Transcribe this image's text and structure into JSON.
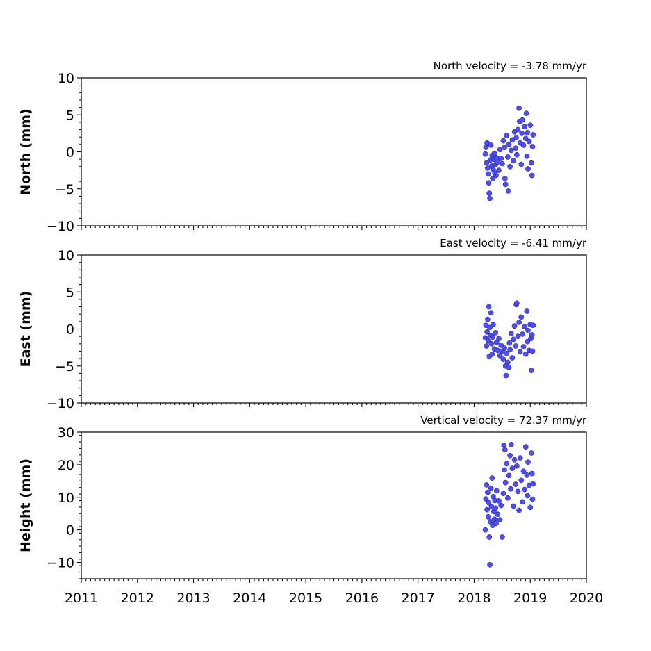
{
  "chart_data": [
    {
      "type": "scatter",
      "component": "north",
      "annotation": "North velocity = -3.78 mm/yr",
      "ylabel": "North (mm)",
      "ylim": [
        -10,
        10
      ],
      "yticks": [
        -10,
        -5,
        0,
        5,
        10
      ],
      "ytick_labels": [
        "−10",
        "−5",
        "0",
        "5",
        "10"
      ],
      "xlim": [
        2011,
        2020
      ],
      "show_xtick_labels": false,
      "color": "#4d4dff",
      "points": [
        [
          2018.2,
          -0.3
        ],
        [
          2018.21,
          0.6
        ],
        [
          2018.22,
          -1.5
        ],
        [
          2018.23,
          1.2
        ],
        [
          2018.24,
          -2.2
        ],
        [
          2018.25,
          -3.0
        ],
        [
          2018.26,
          -4.2
        ],
        [
          2018.27,
          -5.6
        ],
        [
          2018.28,
          -6.3
        ],
        [
          2018.29,
          -1.1
        ],
        [
          2018.3,
          0.9
        ],
        [
          2018.31,
          -1.9
        ],
        [
          2018.32,
          -0.5
        ],
        [
          2018.33,
          -3.6
        ],
        [
          2018.34,
          -2.4
        ],
        [
          2018.35,
          -1.0
        ],
        [
          2018.36,
          -0.2
        ],
        [
          2018.37,
          -2.9
        ],
        [
          2018.38,
          -1.7
        ],
        [
          2018.39,
          -3.2
        ],
        [
          2018.4,
          -0.8
        ],
        [
          2018.42,
          -1.4
        ],
        [
          2018.44,
          -2.5
        ],
        [
          2018.46,
          0.3
        ],
        [
          2018.48,
          -0.9
        ],
        [
          2018.5,
          -1.6
        ],
        [
          2018.52,
          1.5
        ],
        [
          2018.54,
          0.6
        ],
        [
          2018.55,
          -3.6
        ],
        [
          2018.56,
          -4.4
        ],
        [
          2018.58,
          2.2
        ],
        [
          2018.6,
          -0.7
        ],
        [
          2018.61,
          -5.3
        ],
        [
          2018.62,
          1.0
        ],
        [
          2018.64,
          -2.0
        ],
        [
          2018.66,
          0.2
        ],
        [
          2018.68,
          1.6
        ],
        [
          2018.7,
          -1.2
        ],
        [
          2018.72,
          2.7
        ],
        [
          2018.74,
          0.5
        ],
        [
          2018.75,
          1.9
        ],
        [
          2018.76,
          -0.4
        ],
        [
          2018.78,
          3.0
        ],
        [
          2018.8,
          5.9
        ],
        [
          2018.81,
          4.1
        ],
        [
          2018.82,
          1.2
        ],
        [
          2018.84,
          -1.7
        ],
        [
          2018.85,
          2.5
        ],
        [
          2018.86,
          4.3
        ],
        [
          2018.88,
          0.9
        ],
        [
          2018.9,
          3.4
        ],
        [
          2018.92,
          1.8
        ],
        [
          2018.93,
          5.2
        ],
        [
          2018.94,
          -0.6
        ],
        [
          2018.95,
          2.6
        ],
        [
          2018.96,
          -2.3
        ],
        [
          2018.98,
          1.4
        ],
        [
          2019.0,
          3.6
        ],
        [
          2019.02,
          -1.5
        ],
        [
          2019.03,
          -3.2
        ],
        [
          2019.04,
          0.7
        ],
        [
          2019.05,
          2.3
        ]
      ]
    },
    {
      "type": "scatter",
      "component": "east",
      "annotation": "East velocity = -6.41 mm/yr",
      "ylabel": "East (mm)",
      "ylim": [
        -10,
        10
      ],
      "yticks": [
        -10,
        -5,
        0,
        5,
        10
      ],
      "ytick_labels": [
        "−10",
        "−5",
        "0",
        "5",
        "10"
      ],
      "xlim": [
        2011,
        2020
      ],
      "show_xtick_labels": false,
      "color": "#4d4dff",
      "points": [
        [
          2018.2,
          -1.2
        ],
        [
          2018.21,
          0.5
        ],
        [
          2018.22,
          -2.3
        ],
        [
          2018.23,
          -0.4
        ],
        [
          2018.24,
          1.3
        ],
        [
          2018.25,
          -1.6
        ],
        [
          2018.26,
          3.0
        ],
        [
          2018.27,
          -3.7
        ],
        [
          2018.28,
          0.2
        ],
        [
          2018.29,
          -0.9
        ],
        [
          2018.3,
          2.2
        ],
        [
          2018.31,
          -2.0
        ],
        [
          2018.32,
          -3.4
        ],
        [
          2018.33,
          -1.1
        ],
        [
          2018.34,
          0.6
        ],
        [
          2018.36,
          -2.7
        ],
        [
          2018.38,
          -0.5
        ],
        [
          2018.4,
          -1.8
        ],
        [
          2018.42,
          -2.9
        ],
        [
          2018.44,
          -1.3
        ],
        [
          2018.46,
          -3.6
        ],
        [
          2018.48,
          -2.2
        ],
        [
          2018.5,
          -3.0
        ],
        [
          2018.52,
          -4.1
        ],
        [
          2018.54,
          -2.6
        ],
        [
          2018.56,
          -5.0
        ],
        [
          2018.57,
          -6.3
        ],
        [
          2018.58,
          -3.3
        ],
        [
          2018.6,
          -4.5
        ],
        [
          2018.62,
          -5.2
        ],
        [
          2018.63,
          -1.9
        ],
        [
          2018.64,
          -2.8
        ],
        [
          2018.66,
          -0.6
        ],
        [
          2018.68,
          -3.9
        ],
        [
          2018.7,
          -1.4
        ],
        [
          2018.72,
          0.4
        ],
        [
          2018.74,
          -2.3
        ],
        [
          2018.75,
          3.3
        ],
        [
          2018.76,
          3.5
        ],
        [
          2018.78,
          -1.0
        ],
        [
          2018.8,
          0.9
        ],
        [
          2018.82,
          -3.1
        ],
        [
          2018.84,
          1.6
        ],
        [
          2018.86,
          -0.7
        ],
        [
          2018.88,
          -2.4
        ],
        [
          2018.9,
          0.3
        ],
        [
          2018.92,
          -3.4
        ],
        [
          2018.94,
          2.4
        ],
        [
          2018.95,
          -1.7
        ],
        [
          2018.96,
          -0.2
        ],
        [
          2018.98,
          -2.9
        ],
        [
          2019.0,
          0.6
        ],
        [
          2019.01,
          -1.3
        ],
        [
          2019.02,
          -5.6
        ],
        [
          2019.03,
          -0.8
        ],
        [
          2019.04,
          -3.0
        ],
        [
          2019.05,
          0.5
        ]
      ]
    },
    {
      "type": "scatter",
      "component": "height",
      "annotation": "Vertical velocity = 72.37 mm/yr",
      "ylabel": "Height (mm)",
      "ylim": [
        -15,
        30
      ],
      "yticks": [
        -10,
        0,
        10,
        20,
        30
      ],
      "ytick_labels": [
        "−10",
        "0",
        "10",
        "20",
        "30"
      ],
      "xlim": [
        2011,
        2020
      ],
      "xticks": [
        2011,
        2012,
        2013,
        2014,
        2015,
        2016,
        2017,
        2018,
        2019,
        2020
      ],
      "xtick_labels": [
        "2011",
        "2012",
        "2013",
        "2014",
        "2015",
        "2016",
        "2017",
        "2018",
        "2019",
        "2020"
      ],
      "show_xtick_labels": true,
      "color": "#4d4dff",
      "points": [
        [
          2018.2,
          0.0
        ],
        [
          2018.21,
          9.5
        ],
        [
          2018.22,
          13.8
        ],
        [
          2018.23,
          6.2
        ],
        [
          2018.24,
          11.5
        ],
        [
          2018.25,
          4.0
        ],
        [
          2018.26,
          8.3
        ],
        [
          2018.27,
          -2.2
        ],
        [
          2018.28,
          -10.7
        ],
        [
          2018.29,
          2.5
        ],
        [
          2018.3,
          12.8
        ],
        [
          2018.31,
          7.1
        ],
        [
          2018.32,
          15.9
        ],
        [
          2018.33,
          1.4
        ],
        [
          2018.34,
          10.2
        ],
        [
          2018.35,
          5.6
        ],
        [
          2018.36,
          3.3
        ],
        [
          2018.37,
          9.0
        ],
        [
          2018.38,
          6.7
        ],
        [
          2018.39,
          2.0
        ],
        [
          2018.4,
          12.0
        ],
        [
          2018.42,
          4.8
        ],
        [
          2018.44,
          8.9
        ],
        [
          2018.46,
          3.1
        ],
        [
          2018.48,
          7.5
        ],
        [
          2018.5,
          -2.2
        ],
        [
          2018.52,
          11.2
        ],
        [
          2018.53,
          26.0
        ],
        [
          2018.54,
          18.4
        ],
        [
          2018.55,
          24.6
        ],
        [
          2018.56,
          14.5
        ],
        [
          2018.58,
          20.3
        ],
        [
          2018.6,
          9.8
        ],
        [
          2018.62,
          16.7
        ],
        [
          2018.64,
          22.8
        ],
        [
          2018.65,
          12.6
        ],
        [
          2018.66,
          26.2
        ],
        [
          2018.68,
          18.9
        ],
        [
          2018.7,
          7.3
        ],
        [
          2018.72,
          21.5
        ],
        [
          2018.74,
          14.0
        ],
        [
          2018.76,
          19.6
        ],
        [
          2018.78,
          11.8
        ],
        [
          2018.8,
          6.0
        ],
        [
          2018.82,
          22.1
        ],
        [
          2018.84,
          15.2
        ],
        [
          2018.86,
          8.6
        ],
        [
          2018.88,
          18.0
        ],
        [
          2018.9,
          12.4
        ],
        [
          2018.92,
          25.5
        ],
        [
          2018.94,
          16.8
        ],
        [
          2018.95,
          10.5
        ],
        [
          2018.96,
          20.8
        ],
        [
          2018.98,
          13.7
        ],
        [
          2019.0,
          6.9
        ],
        [
          2019.02,
          23.6
        ],
        [
          2019.03,
          17.3
        ],
        [
          2019.04,
          9.4
        ],
        [
          2019.05,
          14.1
        ]
      ]
    }
  ]
}
